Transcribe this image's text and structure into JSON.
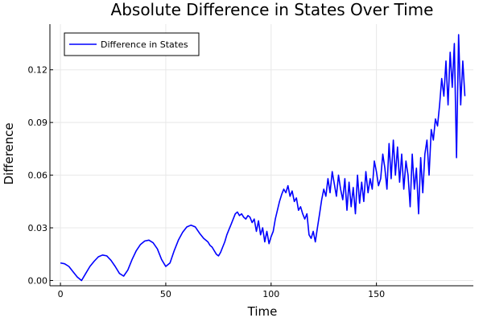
{
  "chart_data": {
    "type": "line",
    "title": "Absolute Difference in States Over Time",
    "xlabel": "Time",
    "ylabel": "Difference",
    "xlim": [
      -5,
      196
    ],
    "ylim": [
      -0.003,
      0.146
    ],
    "xticks": [
      0,
      50,
      100,
      150
    ],
    "xtick_labels": [
      "0",
      "50",
      "100",
      "150"
    ],
    "yticks": [
      0.0,
      0.03,
      0.06,
      0.09,
      0.12
    ],
    "ytick_labels": [
      "0.00",
      "0.03",
      "0.06",
      "0.09",
      "0.12"
    ],
    "grid": true,
    "legend": "top-left",
    "series": [
      {
        "name": "Difference in States",
        "color": "#0000ff",
        "x": [
          0,
          2,
          4,
          6,
          8,
          10,
          12,
          14,
          16,
          18,
          20,
          22,
          24,
          26,
          28,
          30,
          32,
          34,
          36,
          38,
          40,
          42,
          44,
          46,
          48,
          50,
          52,
          54,
          56,
          58,
          60,
          62,
          64,
          66,
          68,
          70,
          71,
          72,
          73,
          74,
          75,
          76,
          77,
          78,
          79,
          80,
          81,
          82,
          83,
          84,
          85,
          86,
          87,
          88,
          89,
          90,
          91,
          92,
          93,
          94,
          95,
          96,
          97,
          98,
          99,
          100,
          101,
          102,
          103,
          104,
          105,
          106,
          107,
          108,
          109,
          110,
          111,
          112,
          113,
          114,
          115,
          116,
          117,
          118,
          119,
          120,
          121,
          122,
          123,
          124,
          125,
          126,
          127,
          128,
          129,
          130,
          131,
          132,
          133,
          134,
          135,
          136,
          137,
          138,
          139,
          140,
          141,
          142,
          143,
          144,
          145,
          146,
          147,
          148,
          149,
          150,
          151,
          152,
          153,
          154,
          155,
          156,
          157,
          158,
          159,
          160,
          161,
          162,
          163,
          164,
          165,
          166,
          167,
          168,
          169,
          170,
          171,
          172,
          173,
          174,
          175,
          176,
          177,
          178,
          179,
          180,
          181,
          182,
          183,
          184,
          185,
          186,
          187,
          188,
          189,
          190,
          191,
          192
        ],
        "y": [
          0.01,
          0.0095,
          0.008,
          0.005,
          0.002,
          0.0,
          0.004,
          0.008,
          0.011,
          0.0135,
          0.0145,
          0.014,
          0.0115,
          0.008,
          0.004,
          0.0025,
          0.006,
          0.012,
          0.017,
          0.0205,
          0.0225,
          0.023,
          0.0215,
          0.018,
          0.012,
          0.008,
          0.01,
          0.017,
          0.023,
          0.0275,
          0.0305,
          0.0315,
          0.0305,
          0.027,
          0.024,
          0.022,
          0.02,
          0.019,
          0.017,
          0.015,
          0.014,
          0.016,
          0.019,
          0.022,
          0.026,
          0.029,
          0.032,
          0.035,
          0.038,
          0.039,
          0.037,
          0.038,
          0.036,
          0.035,
          0.037,
          0.036,
          0.033,
          0.035,
          0.028,
          0.034,
          0.026,
          0.03,
          0.022,
          0.028,
          0.021,
          0.025,
          0.028,
          0.035,
          0.04,
          0.045,
          0.049,
          0.052,
          0.05,
          0.054,
          0.048,
          0.051,
          0.045,
          0.047,
          0.04,
          0.042,
          0.038,
          0.035,
          0.038,
          0.026,
          0.024,
          0.028,
          0.022,
          0.03,
          0.038,
          0.046,
          0.052,
          0.048,
          0.058,
          0.05,
          0.062,
          0.055,
          0.048,
          0.06,
          0.052,
          0.046,
          0.058,
          0.04,
          0.056,
          0.042,
          0.053,
          0.038,
          0.06,
          0.044,
          0.056,
          0.045,
          0.062,
          0.05,
          0.058,
          0.052,
          0.068,
          0.062,
          0.054,
          0.058,
          0.072,
          0.064,
          0.052,
          0.078,
          0.058,
          0.08,
          0.06,
          0.076,
          0.056,
          0.072,
          0.052,
          0.068,
          0.06,
          0.042,
          0.072,
          0.052,
          0.064,
          0.038,
          0.07,
          0.05,
          0.072,
          0.08,
          0.06,
          0.086,
          0.08,
          0.092,
          0.088,
          0.1,
          0.115,
          0.105,
          0.125,
          0.1,
          0.13,
          0.11,
          0.135,
          0.07,
          0.14,
          0.1,
          0.125,
          0.105
        ]
      }
    ]
  }
}
